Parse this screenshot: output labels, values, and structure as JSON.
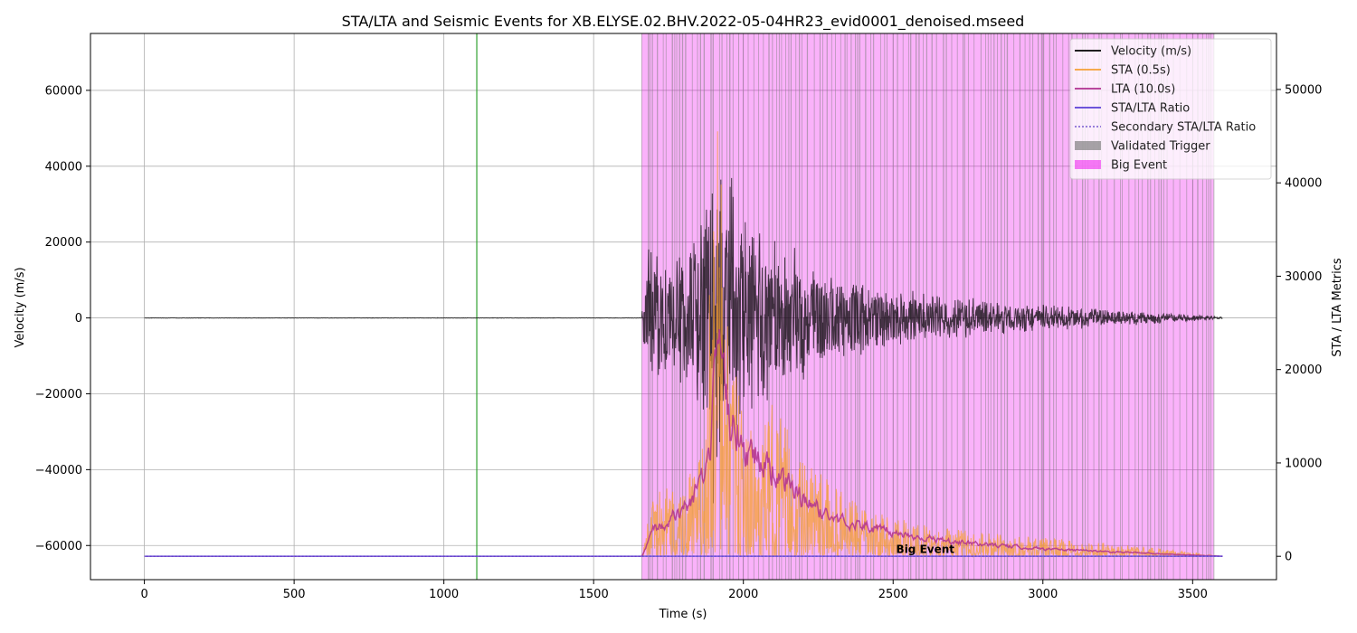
{
  "chart_data": {
    "type": "line",
    "title": "STA/LTA and Seismic Events for XB.ELYSE.02.BHV.2022-05-04HR23_evid0001_denoised.mseed",
    "xlabel": "Time (s)",
    "ylabel_left": "Velocity (m/s)",
    "ylabel_right": "STA / LTA Metrics",
    "xlim": [
      -180,
      3780
    ],
    "ylim_left": [
      -69000,
      75000
    ],
    "ylim_right": [
      -2500,
      56000
    ],
    "x_ticks": [
      0,
      500,
      1000,
      1500,
      2000,
      2500,
      3000,
      3500
    ],
    "y_ticks_left": [
      -60000,
      -40000,
      -20000,
      0,
      20000,
      40000,
      60000
    ],
    "y_ticks_right": [
      0,
      10000,
      20000,
      30000,
      40000,
      50000
    ],
    "y_tick_labels_left": [
      "−60000",
      "−40000",
      "−20000",
      "0",
      "20000",
      "40000",
      "60000"
    ],
    "y_tick_labels_right": [
      "0",
      "10000",
      "20000",
      "30000",
      "40000",
      "50000"
    ],
    "grid": true,
    "legend_position": "top-right",
    "series": [
      {
        "name": "Velocity (m/s)",
        "axis": "left",
        "color": "#000000",
        "x": [
          0,
          1660,
          1680,
          1760,
          1860,
          1900,
          1930,
          2000,
          2100,
          2200,
          2300,
          2500,
          2800,
          3100,
          3400,
          3600
        ],
        "envelope": [
          60,
          60,
          20000,
          15000,
          28000,
          52000,
          45000,
          32000,
          22000,
          18000,
          12000,
          8000,
          5000,
          3000,
          1500,
          300
        ]
      },
      {
        "name": "STA (0.5s)",
        "axis": "right",
        "color": "#f5a034",
        "x": [
          0,
          1660,
          1700,
          1800,
          1870,
          1900,
          1920,
          1930,
          1960,
          2000,
          2050,
          2100,
          2200,
          2300,
          2400,
          2600,
          2800,
          3000,
          3200,
          3400,
          3600
        ],
        "peak": [
          0,
          0,
          7000,
          8000,
          12000,
          41000,
          54000,
          34000,
          22000,
          15000,
          12000,
          17000,
          10000,
          8000,
          5000,
          3500,
          2500,
          2000,
          1500,
          800,
          0
        ]
      },
      {
        "name": "LTA (10.0s)",
        "axis": "right",
        "color": "#b03090",
        "x": [
          0,
          1660,
          1700,
          1800,
          1880,
          1900,
          1920,
          1950,
          2000,
          2100,
          2200,
          2300,
          2500,
          2700,
          3000,
          3300,
          3600
        ],
        "values": [
          0,
          0,
          3000,
          5000,
          9000,
          18000,
          20000,
          15000,
          12000,
          9000,
          6000,
          4000,
          2500,
          1500,
          800,
          400,
          0
        ]
      },
      {
        "name": "STA/LTA Ratio",
        "axis": "right",
        "color": "#5a3fd6",
        "x": [
          0,
          3600
        ],
        "values": [
          5,
          5
        ]
      },
      {
        "name": "Secondary STA/LTA Ratio",
        "axis": "right",
        "color": "#8a6fd6",
        "dashed": true,
        "x": [
          0,
          3600
        ],
        "values": [
          5,
          5
        ]
      }
    ],
    "regions": [
      {
        "name": "Validated Trigger",
        "color": "#808080"
      },
      {
        "name": "Big Event",
        "color": "#ee00ee",
        "x_range": [
          1660,
          3570
        ]
      }
    ],
    "vertical_lines": [
      {
        "x": 1110,
        "color": "#2ca02c"
      }
    ],
    "annotations": [
      {
        "text": "Big Event",
        "x": 2510,
        "y": -62000,
        "color": "#ff00ff"
      }
    ]
  }
}
